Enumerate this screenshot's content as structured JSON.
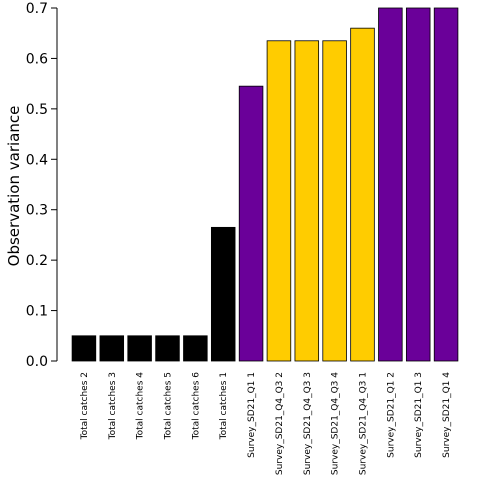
{
  "chart_data": {
    "type": "bar",
    "title": "",
    "xlabel": "",
    "ylabel": "Observation variance",
    "ylim": [
      0,
      0.7
    ],
    "yticks": [
      "0.0",
      "0.1",
      "0.2",
      "0.3",
      "0.4",
      "0.5",
      "0.6",
      "0.7"
    ],
    "grid": false,
    "categories": [
      "Total catches 2",
      "Total catches 3",
      "Total catches 4",
      "Total catches 5",
      "Total catches 6",
      "Total catches 1",
      "Survey_SD21_Q1 1",
      "Survey_SD21_Q4_Q3 2",
      "Survey_SD21_Q4_Q3 3",
      "Survey_SD21_Q4_Q3 4",
      "Survey_SD21_Q4_Q3 1",
      "Survey_SD21_Q1 2",
      "Survey_SD21_Q1 3",
      "Survey_SD21_Q1 4"
    ],
    "values": [
      0.05,
      0.05,
      0.05,
      0.05,
      0.05,
      0.265,
      0.545,
      0.635,
      0.635,
      0.635,
      0.66,
      0.7,
      0.7,
      0.7
    ],
    "bar_colors": [
      "#000000",
      "#000000",
      "#000000",
      "#000000",
      "#000000",
      "#000000",
      "#6a0099",
      "#ffcc00",
      "#ffcc00",
      "#ffcc00",
      "#ffcc00",
      "#6a0099",
      "#6a0099",
      "#6a0099"
    ]
  }
}
